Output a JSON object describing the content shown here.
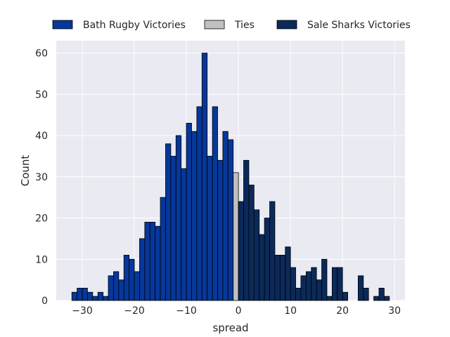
{
  "chart_data": {
    "type": "bar",
    "subtype": "histogram",
    "xlabel": "spread",
    "ylabel": "Count",
    "xlim": [
      -35,
      32
    ],
    "ylim": [
      0,
      63
    ],
    "xticks": [
      -30,
      -20,
      -10,
      0,
      10,
      20,
      30
    ],
    "yticks": [
      0,
      10,
      20,
      30,
      40,
      50,
      60
    ],
    "grid": true,
    "legend": "top",
    "background": "#eaeaf2",
    "bin_width": 1,
    "series": [
      {
        "name": "Bath Rugby Victories",
        "color": "#06379a",
        "bins": [
          {
            "x": -32,
            "y": 2
          },
          {
            "x": -31,
            "y": 3
          },
          {
            "x": -30,
            "y": 3
          },
          {
            "x": -29,
            "y": 2
          },
          {
            "x": -28,
            "y": 1
          },
          {
            "x": -27,
            "y": 2
          },
          {
            "x": -26,
            "y": 1
          },
          {
            "x": -25,
            "y": 6
          },
          {
            "x": -24,
            "y": 7
          },
          {
            "x": -23,
            "y": 5
          },
          {
            "x": -22,
            "y": 11
          },
          {
            "x": -21,
            "y": 10
          },
          {
            "x": -20,
            "y": 7
          },
          {
            "x": -19,
            "y": 15
          },
          {
            "x": -18,
            "y": 19
          },
          {
            "x": -17,
            "y": 19
          },
          {
            "x": -16,
            "y": 18
          },
          {
            "x": -15,
            "y": 25
          },
          {
            "x": -14,
            "y": 38
          },
          {
            "x": -13,
            "y": 35
          },
          {
            "x": -12,
            "y": 40
          },
          {
            "x": -11,
            "y": 32
          },
          {
            "x": -10,
            "y": 43
          },
          {
            "x": -9,
            "y": 41
          },
          {
            "x": -8,
            "y": 47
          },
          {
            "x": -7,
            "y": 60
          },
          {
            "x": -6,
            "y": 35
          },
          {
            "x": -5,
            "y": 47
          },
          {
            "x": -4,
            "y": 34
          },
          {
            "x": -3,
            "y": 41
          },
          {
            "x": -2,
            "y": 39
          }
        ]
      },
      {
        "name": "Ties",
        "color": "#c0c0c0",
        "bins": [
          {
            "x": -1,
            "y": 31
          }
        ]
      },
      {
        "name": "Sale Sharks Victories",
        "color": "#0b2a5a",
        "bins": [
          {
            "x": 0,
            "y": 24
          },
          {
            "x": 1,
            "y": 34
          },
          {
            "x": 2,
            "y": 28
          },
          {
            "x": 3,
            "y": 22
          },
          {
            "x": 4,
            "y": 16
          },
          {
            "x": 5,
            "y": 20
          },
          {
            "x": 6,
            "y": 24
          },
          {
            "x": 7,
            "y": 11
          },
          {
            "x": 8,
            "y": 11
          },
          {
            "x": 9,
            "y": 13
          },
          {
            "x": 10,
            "y": 8
          },
          {
            "x": 11,
            "y": 3
          },
          {
            "x": 12,
            "y": 6
          },
          {
            "x": 13,
            "y": 7
          },
          {
            "x": 14,
            "y": 8
          },
          {
            "x": 15,
            "y": 5
          },
          {
            "x": 16,
            "y": 10
          },
          {
            "x": 17,
            "y": 1
          },
          {
            "x": 18,
            "y": 8
          },
          {
            "x": 19,
            "y": 8
          },
          {
            "x": 20,
            "y": 2
          },
          {
            "x": 23,
            "y": 6
          },
          {
            "x": 24,
            "y": 3
          },
          {
            "x": 26,
            "y": 1
          },
          {
            "x": 27,
            "y": 3
          },
          {
            "x": 28,
            "y": 1
          }
        ]
      }
    ]
  }
}
